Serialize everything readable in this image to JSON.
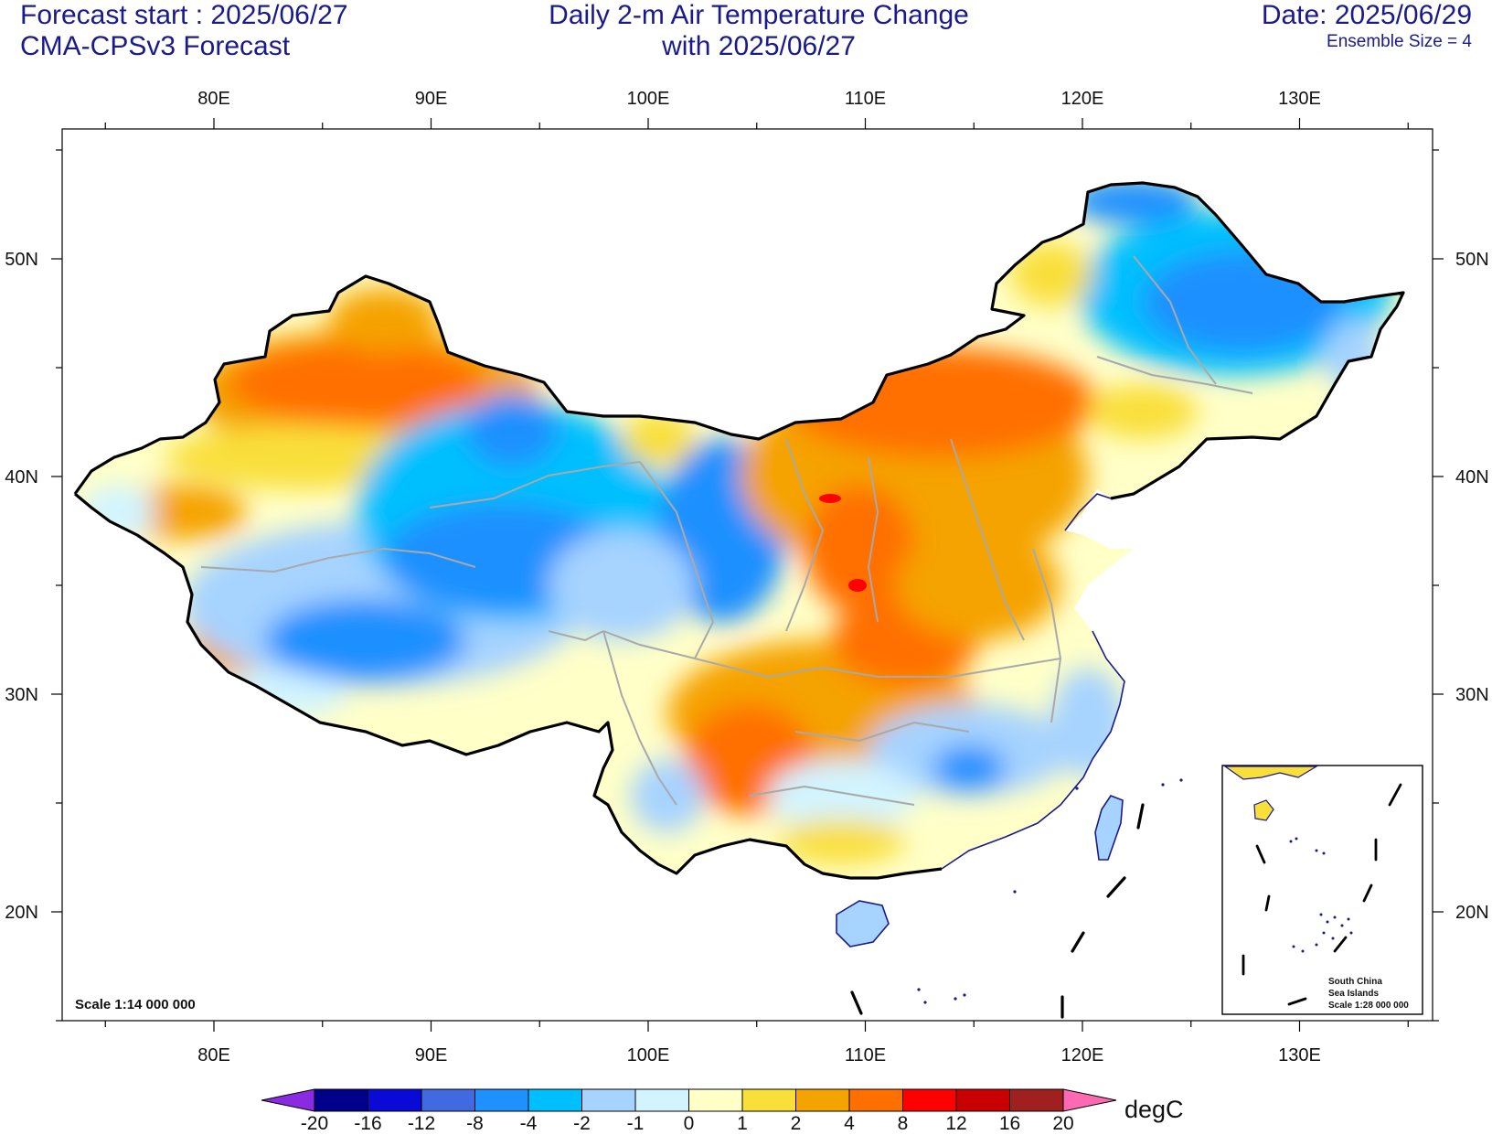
{
  "header": {
    "forecast_start": "Forecast start : 2025/06/27",
    "model": "CMA-CPSv3 Forecast",
    "title_line1": "Daily 2-m Air Temperature Change",
    "title_line2": "with 2025/06/27",
    "date": "Date: 2025/06/29",
    "ensemble": "Ensemble Size = 4"
  },
  "map": {
    "lon_ticks": [
      {
        "lon": 80,
        "label": "80E"
      },
      {
        "lon": 90,
        "label": "90E"
      },
      {
        "lon": 100,
        "label": "100E"
      },
      {
        "lon": 110,
        "label": "110E"
      },
      {
        "lon": 120,
        "label": "120E"
      },
      {
        "lon": 130,
        "label": "130E"
      }
    ],
    "lat_ticks": [
      {
        "lat": 50,
        "label": "50N"
      },
      {
        "lat": 40,
        "label": "40N"
      },
      {
        "lat": 30,
        "label": "30N"
      },
      {
        "lat": 20,
        "label": "20N"
      }
    ],
    "lon_range": [
      73,
      136
    ],
    "lat_range": [
      15,
      56
    ],
    "scale_note": "Scale 1:14 000 000",
    "inset": {
      "line1": "South China",
      "line2": "Sea Islands",
      "line3": "Scale 1:28 000 000"
    }
  },
  "colorbar": {
    "unit": "degC",
    "labels": [
      "-20",
      "-16",
      "-12",
      "-8",
      "-4",
      "-2",
      "-1",
      "0",
      "1",
      "2",
      "4",
      "8",
      "12",
      "16",
      "20"
    ],
    "colors": [
      "#8a2be2",
      "#00008b",
      "#0a0ad6",
      "#4169e1",
      "#1e90ff",
      "#00bfff",
      "#a6d3ff",
      "#d2f4ff",
      "#ffffc8",
      "#f9df3a",
      "#f5a300",
      "#ff7000",
      "#ff0000",
      "#c80000",
      "#a02020",
      "#ff69b4"
    ]
  }
}
